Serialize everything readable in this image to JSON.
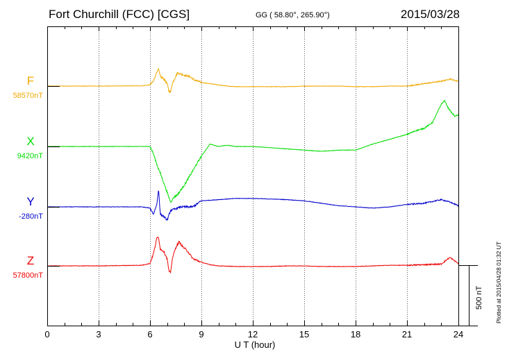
{
  "header": {
    "station": "Fort Churchill (FCC)  [CGS]",
    "coords": "GG ( 58.80°, 265.90°)",
    "date": "2015/03/28"
  },
  "footer": {
    "plotted": "Plotted at 2015/04/28 01:32 UT"
  },
  "chart_data": {
    "type": "line",
    "title": "Fort Churchill (FCC)  [CGS]",
    "xlabel": "U T (hour)",
    "ylabel": "",
    "xlim": [
      0,
      24
    ],
    "xticks": [
      "0",
      "3",
      "6",
      "9",
      "12",
      "15",
      "18",
      "21",
      "24"
    ],
    "grid": true,
    "scale_bar": {
      "label": "500 nT",
      "value_nT": 500
    },
    "colors": {
      "F": "#f0a800",
      "X": "#00dd00",
      "Y": "#0000cc",
      "Z": "#ee0000"
    },
    "series": [
      {
        "name": "F",
        "baseline_label": "58570nT",
        "baseline_nT": 58570,
        "x": [
          0,
          3,
          5.5,
          6.0,
          6.2,
          6.4,
          6.5,
          6.6,
          6.8,
          7.0,
          7.1,
          7.2,
          7.3,
          7.5,
          7.6,
          7.8,
          8.0,
          8.3,
          8.6,
          9.0,
          9.5,
          10,
          10.5,
          11,
          12,
          13,
          14,
          15,
          16,
          17,
          18,
          19,
          20,
          21,
          21.5,
          22,
          22.5,
          23,
          23.3,
          23.5,
          23.7,
          24
        ],
        "values": [
          0,
          0,
          2,
          10,
          40,
          120,
          140,
          80,
          60,
          20,
          -40,
          -50,
          20,
          80,
          110,
          100,
          90,
          80,
          50,
          30,
          20,
          10,
          0,
          -5,
          -5,
          -5,
          -5,
          0,
          0,
          0,
          -5,
          -5,
          0,
          0,
          10,
          20,
          30,
          40,
          50,
          60,
          50,
          40
        ]
      },
      {
        "name": "X",
        "baseline_label": "9420nT",
        "baseline_nT": 9420,
        "x": [
          0,
          3,
          5.5,
          6.0,
          6.2,
          6.4,
          6.6,
          6.8,
          7.0,
          7.2,
          7.4,
          7.6,
          8.0,
          8.5,
          9.0,
          9.5,
          10,
          10.5,
          11,
          12,
          13,
          14,
          15,
          16,
          17,
          18,
          19,
          20,
          21,
          21.5,
          22,
          22.5,
          23,
          23.2,
          23.4,
          23.6,
          23.8,
          24
        ],
        "values": [
          0,
          0,
          0,
          0,
          -60,
          -150,
          -220,
          -300,
          -380,
          -460,
          -420,
          -400,
          -320,
          -200,
          -80,
          20,
          0,
          10,
          0,
          0,
          -10,
          -20,
          -30,
          -40,
          -30,
          -30,
          20,
          60,
          100,
          130,
          150,
          200,
          350,
          380,
          320,
          280,
          250,
          260
        ]
      },
      {
        "name": "Y",
        "baseline_label": "-280nT",
        "baseline_nT": -280,
        "x": [
          0,
          3,
          5.5,
          6.0,
          6.2,
          6.4,
          6.5,
          6.6,
          6.8,
          7.0,
          7.2,
          7.4,
          7.8,
          8.5,
          9.0,
          10,
          11,
          12,
          13,
          14,
          15,
          16,
          17,
          18,
          19,
          20,
          21,
          22,
          23,
          23.5,
          24
        ],
        "values": [
          0,
          0,
          0,
          -10,
          -60,
          20,
          150,
          -60,
          -80,
          -110,
          -30,
          -20,
          0,
          0,
          50,
          60,
          70,
          70,
          65,
          60,
          50,
          30,
          10,
          0,
          -10,
          0,
          20,
          30,
          60,
          40,
          10
        ]
      },
      {
        "name": "Z",
        "baseline_label": "57800nT",
        "baseline_nT": 57800,
        "x": [
          0,
          3,
          5.5,
          6.0,
          6.2,
          6.4,
          6.5,
          6.6,
          6.8,
          7.0,
          7.1,
          7.2,
          7.3,
          7.5,
          7.7,
          7.9,
          8.2,
          8.5,
          9.0,
          9.5,
          10,
          11,
          12,
          13,
          14,
          15,
          16,
          17,
          18,
          19,
          20,
          21,
          22,
          23,
          23.5,
          24
        ],
        "values": [
          0,
          0,
          5,
          20,
          100,
          230,
          240,
          140,
          120,
          60,
          -40,
          -60,
          60,
          150,
          200,
          160,
          120,
          60,
          30,
          10,
          0,
          -5,
          -5,
          -5,
          0,
          0,
          -5,
          -5,
          -5,
          0,
          5,
          5,
          10,
          15,
          70,
          20
        ]
      }
    ]
  }
}
